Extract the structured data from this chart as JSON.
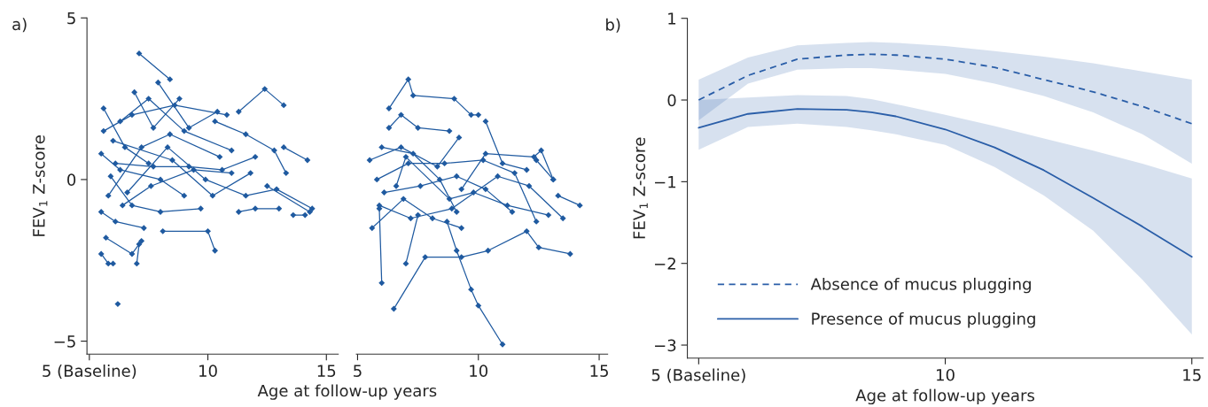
{
  "chart_data": [
    {
      "type": "line",
      "annotations": [
        "a)"
      ],
      "ylabel": "FEV$_{1}$ Z-score",
      "xlabel": "Age at follow-up years",
      "marker": "diamond",
      "line_style": "solid",
      "legend": false,
      "grid": false,
      "xlim": [
        4.9,
        15.5
      ],
      "xticks": [
        {
          "value": 5,
          "label": "5 (Baseline)"
        },
        10,
        15
      ],
      "ylim": [
        -5.4,
        5
      ],
      "yticks": [
        5,
        0,
        {
          "value": -5,
          "label": "−5"
        }
      ],
      "series": [
        {
          "color": "#1f5aa0",
          "x": [
            7.1,
            8.4
          ],
          "values": [
            3.9,
            3.1
          ]
        },
        {
          "color": "#1f5aa0",
          "x": [
            11.3,
            12.4,
            13.2
          ],
          "values": [
            2.1,
            2.8,
            2.3
          ]
        },
        {
          "color": "#1f5aa0",
          "x": [
            6.2
          ],
          "values": [
            -3.85
          ]
        },
        {
          "color": "#1f5aa0",
          "x": [
            8.1,
            10.0,
            10.3
          ],
          "values": [
            -1.6,
            -1.6,
            -2.2
          ]
        },
        {
          "color": "#1f5aa0",
          "x": [
            5.5,
            5.8,
            6.0
          ],
          "values": [
            -2.3,
            -2.6,
            -2.6
          ]
        },
        {
          "color": "#1f5aa0",
          "x": [
            5.6,
            6.5,
            7.5
          ],
          "values": [
            2.2,
            1.0,
            0.5
          ]
        },
        {
          "color": "#1f5aa0",
          "x": [
            6.9,
            7.7,
            8.8
          ],
          "values": [
            2.7,
            1.6,
            2.5
          ]
        },
        {
          "color": "#1f5aa0",
          "x": [
            7.9,
            9.2,
            10.4
          ],
          "values": [
            3.0,
            1.6,
            2.1
          ]
        },
        {
          "color": "#1f5aa0",
          "x": [
            13.2,
            14.2
          ],
          "values": [
            1.0,
            0.6
          ]
        },
        {
          "color": "#1f5aa0",
          "x": [
            12.5,
            14.3
          ],
          "values": [
            -0.2,
            -1.0
          ]
        },
        {
          "color": "#1f5aa0",
          "x": [
            11.3,
            12.0,
            13.0
          ],
          "values": [
            -1.0,
            -0.9,
            -0.9
          ]
        },
        {
          "color": "#1f5aa0",
          "x": [
            13.6,
            14.1
          ],
          "values": [
            -1.1,
            -1.1
          ]
        },
        {
          "color": "#1f5aa0",
          "x": [
            5.5,
            6.3,
            8.0,
            9.0
          ],
          "values": [
            0.8,
            0.3,
            0.0,
            -0.5
          ]
        },
        {
          "color": "#1f5aa0",
          "x": [
            5.8,
            7.2,
            8.4,
            10.5
          ],
          "values": [
            -0.5,
            1.0,
            1.4,
            0.7
          ]
        },
        {
          "color": "#1f5aa0",
          "x": [
            5.5,
            6.1,
            7.3
          ],
          "values": [
            -1.0,
            -1.3,
            -1.5
          ]
        },
        {
          "color": "#1f5aa0",
          "x": [
            6.3,
            7.5,
            9.0,
            11.0
          ],
          "values": [
            1.8,
            2.5,
            1.5,
            0.9
          ]
        },
        {
          "color": "#1f5aa0",
          "x": [
            5.9,
            6.8,
            8.0,
            9.7
          ],
          "values": [
            0.1,
            -0.8,
            -1.0,
            -0.9
          ]
        },
        {
          "color": "#1f5aa0",
          "x": [
            6.0,
            8.5,
            10.2,
            11.8
          ],
          "values": [
            1.2,
            0.6,
            -0.5,
            0.2
          ]
        },
        {
          "color": "#1f5aa0",
          "x": [
            5.7,
            6.8,
            7.2
          ],
          "values": [
            -1.8,
            -2.3,
            -1.9
          ]
        },
        {
          "color": "#1f5aa0",
          "x": [
            7.0,
            7.1
          ],
          "values": [
            -2.6,
            -2.0
          ]
        },
        {
          "color": "#1f5aa0",
          "x": [
            10.3,
            11.6,
            12.8,
            13.3
          ],
          "values": [
            1.8,
            1.4,
            0.9,
            0.2
          ]
        },
        {
          "color": "#1f5aa0",
          "x": [
            6.1,
            7.7,
            9.2,
            10.6,
            12.0
          ],
          "values": [
            0.5,
            0.4,
            0.4,
            0.3,
            0.7
          ]
        },
        {
          "color": "#1f5aa0",
          "x": [
            6.6,
            8.3,
            9.9,
            11.6,
            12.9,
            14.4
          ],
          "values": [
            -0.4,
            1.0,
            0.0,
            -0.5,
            -0.3,
            -0.9
          ]
        },
        {
          "color": "#1f5aa0",
          "x": [
            5.6,
            6.8,
            8.6,
            10.8
          ],
          "values": [
            1.5,
            2.0,
            2.3,
            2.0
          ]
        },
        {
          "color": "#1f5aa0",
          "x": [
            6.4,
            7.6,
            9.4,
            11.0
          ],
          "values": [
            -0.8,
            -0.2,
            0.3,
            0.2
          ]
        }
      ]
    },
    {
      "type": "line",
      "tick_labels": "x",
      "marker": "diamond",
      "line_style": "solid",
      "legend": false,
      "grid": false,
      "xlim": [
        4.95,
        15.35
      ],
      "xticks": [
        5,
        10,
        15
      ],
      "ylim": [
        -5.4,
        5
      ],
      "series": [
        {
          "color": "#1f5aa0",
          "x": [
            6.3,
            7.1,
            7.3,
            9.0,
            9.7,
            10.0
          ],
          "values": [
            2.2,
            3.1,
            2.6,
            2.5,
            2.0,
            2.0
          ]
        },
        {
          "color": "#1f5aa0",
          "x": [
            8.7,
            9.1,
            9.7,
            10.0,
            11.0
          ],
          "values": [
            -1.3,
            -2.2,
            -3.4,
            -3.9,
            -5.1
          ]
        },
        {
          "color": "#1f5aa0",
          "x": [
            6.5,
            7.8,
            9.3,
            10.4,
            12.0,
            12.5,
            13.8
          ],
          "values": [
            -4.0,
            -2.4,
            -2.4,
            -2.2,
            -1.6,
            -2.1,
            -2.3
          ]
        },
        {
          "color": "#1f5aa0",
          "x": [
            6.0,
            5.9
          ],
          "values": [
            -3.2,
            -0.9
          ]
        },
        {
          "color": "#1f5aa0",
          "x": [
            7.0,
            7.5
          ],
          "values": [
            -2.6,
            -1.1
          ]
        },
        {
          "color": "#1f5aa0",
          "x": [
            10.3,
            11.0,
            12.0
          ],
          "values": [
            1.8,
            0.5,
            0.3
          ]
        },
        {
          "color": "#1f5aa0",
          "x": [
            12.4,
            13.1
          ],
          "values": [
            0.6,
            0.0
          ]
        },
        {
          "color": "#1f5aa0",
          "x": [
            13.3,
            14.2
          ],
          "values": [
            -0.5,
            -0.8
          ]
        },
        {
          "color": "#1f5aa0",
          "x": [
            5.5,
            6.8,
            8.3,
            9.2
          ],
          "values": [
            0.6,
            1.0,
            0.4,
            1.3
          ]
        },
        {
          "color": "#1f5aa0",
          "x": [
            5.6,
            6.9,
            8.1,
            9.3
          ],
          "values": [
            -1.5,
            -0.6,
            -1.2,
            -1.5
          ]
        },
        {
          "color": "#1f5aa0",
          "x": [
            6.3,
            6.8,
            7.5,
            8.8
          ],
          "values": [
            1.6,
            2.0,
            1.6,
            1.5
          ]
        },
        {
          "color": "#1f5aa0",
          "x": [
            5.8,
            7.1,
            8.6,
            10.2,
            11.5,
            12.4
          ],
          "values": [
            0.0,
            0.5,
            0.5,
            0.6,
            0.2,
            -1.3
          ]
        },
        {
          "color": "#1f5aa0",
          "x": [
            6.1,
            7.6,
            9.1,
            10.3,
            11.4
          ],
          "values": [
            -0.4,
            -0.2,
            0.1,
            -0.3,
            -1.0
          ]
        },
        {
          "color": "#1f5aa0",
          "x": [
            9.3,
            10.3,
            12.3,
            12.6,
            13.1
          ],
          "values": [
            -0.3,
            0.8,
            0.7,
            0.9,
            0.0
          ]
        },
        {
          "color": "#1f5aa0",
          "x": [
            5.9,
            7.2,
            8.9,
            10.8,
            12.1,
            13.5
          ],
          "values": [
            -0.8,
            -1.2,
            -0.9,
            0.1,
            -0.2,
            -1.2
          ]
        },
        {
          "color": "#1f5aa0",
          "x": [
            6.0,
            7.3,
            8.4,
            9.1
          ],
          "values": [
            1.0,
            0.8,
            0.0,
            -1.0
          ]
        },
        {
          "color": "#1f5aa0",
          "x": [
            6.6,
            7.0,
            8.8,
            9.8,
            11.2,
            12.9
          ],
          "values": [
            -0.2,
            0.7,
            -0.6,
            -0.4,
            -0.8,
            -1.1
          ]
        }
      ]
    },
    {
      "type": "line",
      "annotations": [
        "b)"
      ],
      "ylabel": "FEV$_{1}$ Z-score",
      "xlabel": "Age at follow-up years",
      "marker": "none",
      "legend": "bottom left",
      "grid": false,
      "xlim": [
        4.77,
        15.23
      ],
      "xticks": [
        {
          "value": 5,
          "label": "5 (Baseline)"
        },
        10,
        15
      ],
      "ylim": [
        -3.16,
        1
      ],
      "yticks": [
        1,
        0,
        {
          "value": -1,
          "label": "−1"
        },
        {
          "value": -2,
          "label": "−2"
        },
        {
          "value": -3,
          "label": "−3"
        }
      ],
      "series": [
        {
          "name": "Absence of mucus plugging",
          "color": "#2a5ea8",
          "line_style": "dashed",
          "x": [
            5,
            6,
            7,
            8,
            8.5,
            9,
            10,
            11,
            12,
            13,
            14,
            15
          ],
          "values": [
            0,
            0.3,
            0.5,
            0.55,
            0.56,
            0.55,
            0.5,
            0.4,
            0.25,
            0.1,
            -0.08,
            -0.29
          ],
          "upper": [
            0.25,
            0.52,
            0.67,
            0.7,
            0.71,
            0.7,
            0.66,
            0.6,
            0.53,
            0.45,
            0.35,
            0.25
          ],
          "lower": [
            -0.25,
            0.2,
            0.37,
            0.39,
            0.39,
            0.37,
            0.32,
            0.2,
            0.05,
            -0.15,
            -0.42,
            -0.78
          ]
        },
        {
          "name": "Presence of mucus plugging",
          "color": "#2a5ea8",
          "line_style": "solid",
          "x": [
            5,
            6,
            7,
            8,
            8.5,
            9,
            10,
            11,
            12,
            13,
            14,
            15
          ],
          "values": [
            -0.34,
            -0.17,
            -0.11,
            -0.12,
            -0.15,
            -0.2,
            -0.36,
            -0.58,
            -0.86,
            -1.2,
            -1.55,
            -1.92
          ],
          "upper": [
            0.0,
            0.03,
            0.06,
            0.05,
            0.01,
            -0.05,
            -0.18,
            -0.32,
            -0.47,
            -0.62,
            -0.78,
            -0.96
          ],
          "lower": [
            -0.61,
            -0.33,
            -0.29,
            -0.33,
            -0.37,
            -0.42,
            -0.55,
            -0.82,
            -1.17,
            -1.6,
            -2.2,
            -2.87
          ]
        }
      ]
    }
  ]
}
